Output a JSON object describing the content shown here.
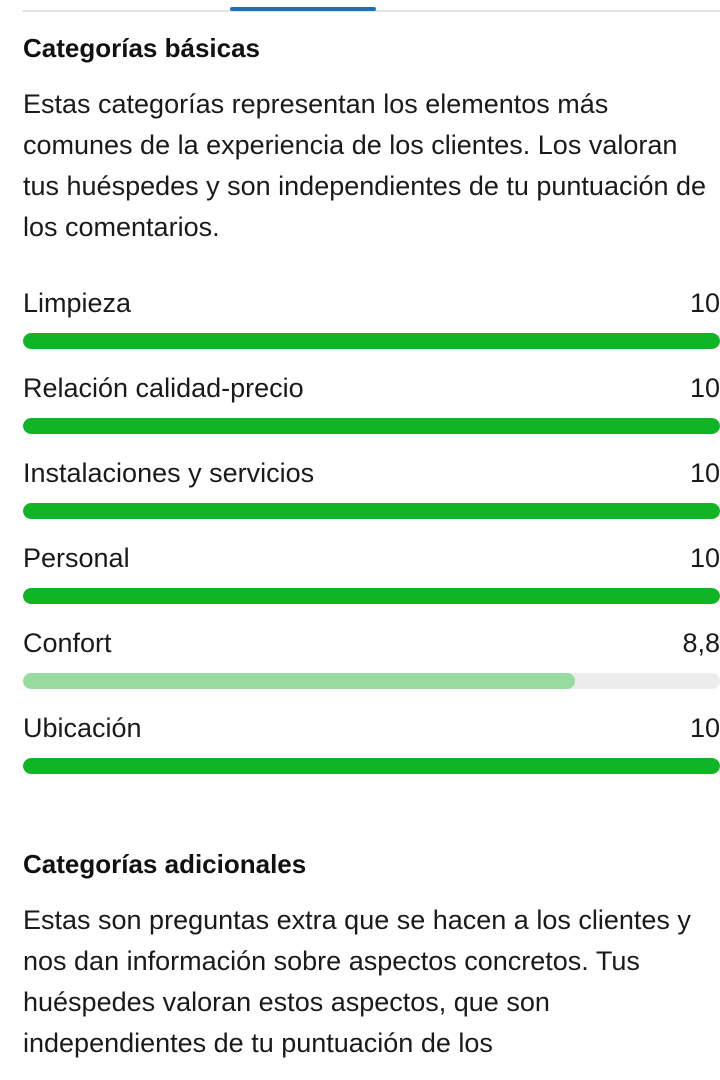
{
  "colors": {
    "tab_indicator": "#1f6fb5",
    "bar_full": "#10b526",
    "bar_partial": "#97dc9f",
    "bar_track": "#ececec"
  },
  "basic": {
    "title": "Categorías básicas",
    "description": "Estas categorías representan los elementos más comunes de la experiencia de los clientes. Los valoran tus huéspedes y son independientes de tu puntuación de los comentarios.",
    "ratings": [
      {
        "label": "Limpieza",
        "score": "10",
        "value": 10
      },
      {
        "label": "Relación calidad-precio",
        "score": "10",
        "value": 10
      },
      {
        "label": "Instalaciones y servicios",
        "score": "10",
        "value": 10
      },
      {
        "label": "Personal",
        "score": "10",
        "value": 10
      },
      {
        "label": "Confort",
        "score": "8,8",
        "value": 8.8
      },
      {
        "label": "Ubicación",
        "score": "10",
        "value": 10
      }
    ],
    "max_score": 10
  },
  "additional": {
    "title": "Categorías adicionales",
    "description": "Estas son preguntas extra que se hacen a los clientes y nos dan información sobre aspectos concretos. Tus huéspedes valoran estos aspectos, que son independientes de tu puntuación de los"
  }
}
